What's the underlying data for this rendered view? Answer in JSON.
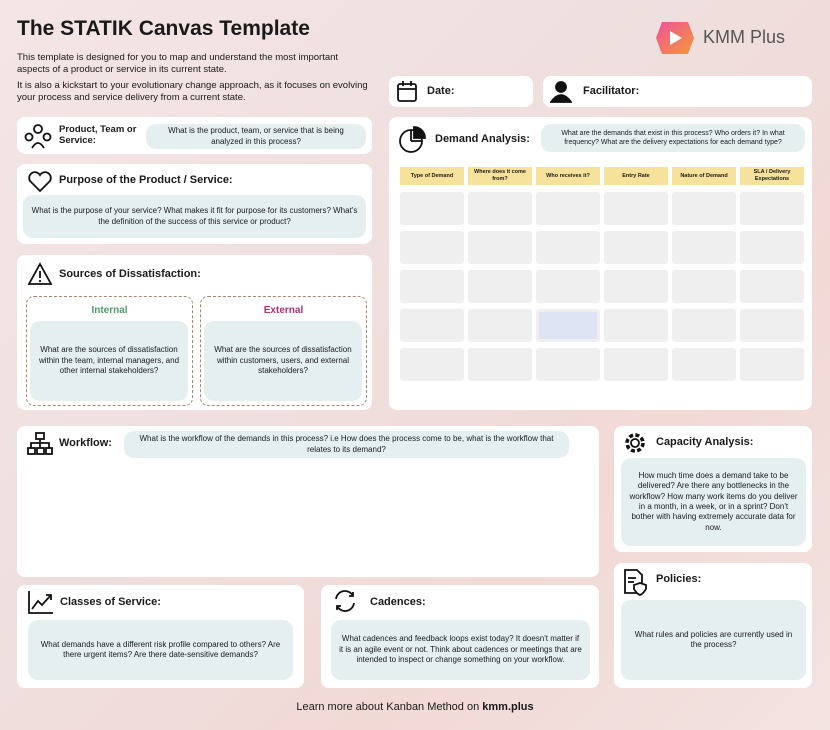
{
  "header": {
    "title": "The STATIK Canvas Template",
    "intro": [
      "This template is designed for you to map and understand the most important aspects of a product or service in its current state.",
      "It is also a kickstart to your evolutionary change approach, as it focuses on evolving your process and service delivery from a current state."
    ],
    "logo": "KMM Plus"
  },
  "date": {
    "label": "Date:"
  },
  "facilitator": {
    "label": "Facilitator:"
  },
  "product": {
    "label": "Product, Team or Service:",
    "prompt": "What is the product, team, or service that is being analyzed in this process?"
  },
  "purpose": {
    "label": "Purpose of the Product / Service:",
    "prompt": "What is the purpose of your service? What makes it fit for purpose for its customers? What's the definition of the success of this service or product?"
  },
  "dissatisfaction": {
    "label": "Sources of Dissatisfaction:",
    "internal": {
      "title": "Internal",
      "prompt": "What are the sources of dissatisfaction within the team, internal managers, and other internal stakeholders?"
    },
    "external": {
      "title": "External",
      "prompt": "What are the sources of dissatisfaction within customers, users, and external stakeholders?"
    }
  },
  "demand": {
    "label": "Demand Analysis:",
    "prompt": "What are the demands that exist in this process? Who orders it? In what frequency? What are the delivery expectations for each demand type?",
    "columns": [
      "Type of Demand",
      "Where does it come from?",
      "Who receives it?",
      "Entry Rate",
      "Nature of Demand",
      "SLA / Delivery Expectations"
    ]
  },
  "workflow": {
    "label": "Workflow:",
    "prompt": "What is the workflow of the demands in this process? i.e How does the process come to be, what is the workflow that relates to its demand?"
  },
  "capacity": {
    "label": "Capacity Analysis:",
    "prompt": "How much time does a demand take to be delivered? Are there any bottlenecks in the workflow? How many work items do you deliver in a month, in a week, or in a sprint? Don't bother with having extremely accurate data for now."
  },
  "policies": {
    "label": "Policies:",
    "prompt": "What rules and policies are currently used in the process?"
  },
  "classes": {
    "label": "Classes of Service:",
    "prompt": "What demands have a different risk profile compared to others? Are there urgent items? Are there date-sensitive demands?"
  },
  "cadences": {
    "label": "Cadences:",
    "prompt": "What cadences and feedback loops exist today? It doesn't matter if it is an agile event or not. Think about cadences or meetings that are intended to inspect or change something on your workflow."
  },
  "footer": {
    "text": "Learn more about Kanban Method on",
    "link": "kmm.plus"
  }
}
